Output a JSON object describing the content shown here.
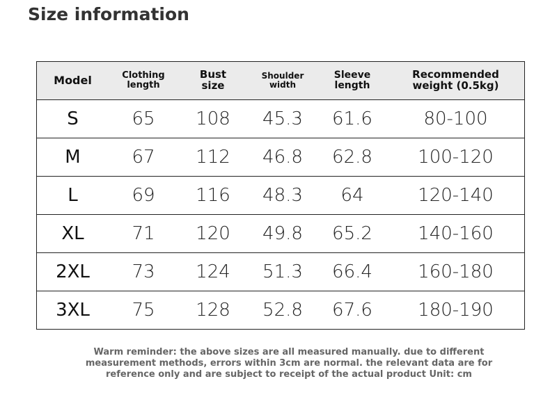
{
  "header": {
    "title": "Size information"
  },
  "table": {
    "headers": [
      "Model",
      "Clothing length",
      "Bust size",
      "Shoulder width",
      "Sleeve length",
      "Recommended weight (0.5kg)"
    ],
    "rows": [
      [
        "S",
        "65",
        "108",
        "45.3",
        "61.6",
        "80-100"
      ],
      [
        "M",
        "67",
        "112",
        "46.8",
        "62.8",
        "100-120"
      ],
      [
        "L",
        "69",
        "116",
        "48.3",
        "64",
        "120-140"
      ],
      [
        "XL",
        "71",
        "120",
        "49.8",
        "65.2",
        "140-160"
      ],
      [
        "2XL",
        "73",
        "124",
        "51.3",
        "66.4",
        "160-180"
      ],
      [
        "3XL",
        "75",
        "128",
        "52.8",
        "67.6",
        "180-190"
      ]
    ]
  },
  "note": [
    "Warm reminder: the above sizes are all measured manually. due to different",
    "measurement methods, errors within 3cm are normal. the relevant data are for",
    "reference only and are subject to receipt of the actual product Unit: cm"
  ]
}
